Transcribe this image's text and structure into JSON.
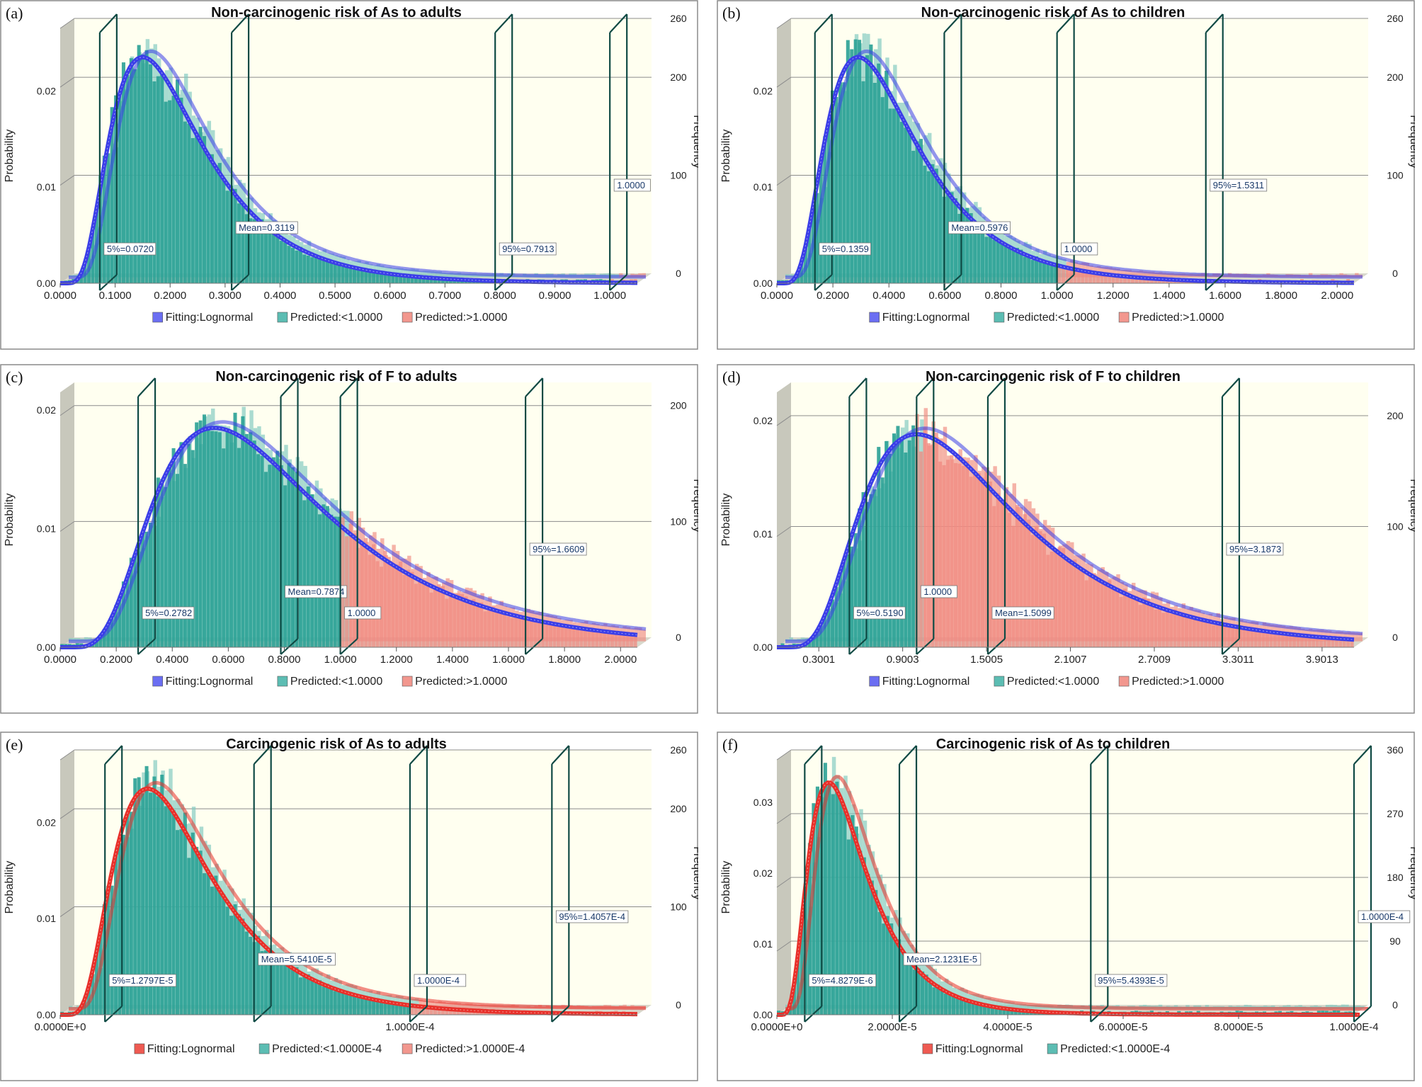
{
  "colors": {
    "plot_bg": "#fffff0",
    "wall": "#c8c8bc",
    "teal": "#2aa195",
    "teal_light": "#7cc8bf",
    "red_bar": "#f08a80",
    "blue_curve": "#3b3ee8",
    "red_curve": "#e8302a",
    "marker": "#0f4a44",
    "grid": "#8c8c8c",
    "panel_border": "#8a8a8a"
  },
  "chart_data": [
    {
      "panel": "(a)",
      "type": "bar",
      "title": "Non-carcinogenic risk of As to adults",
      "xlabel": "",
      "ylabel": "Probability",
      "y2label": "Frequency",
      "distribution": "lognormal",
      "peak_x": 0.15,
      "peak_prob": 0.0235,
      "xmin": 0.0,
      "xmax": 1.05,
      "threshold": 1.0,
      "xlim": [
        0.0,
        1.05
      ],
      "ylim": [
        0.0,
        0.0265
      ],
      "y2lim": [
        0,
        260
      ],
      "x_ticks": [
        "0.0000",
        "0.1000",
        "0.2000",
        "0.3000",
        "0.4000",
        "0.5000",
        "0.6000",
        "0.7000",
        "0.8000",
        "0.9000",
        "1.0000"
      ],
      "x_tick_values": [
        0.0,
        0.1,
        0.2,
        0.3,
        0.4,
        0.5,
        0.6,
        0.7,
        0.8,
        0.9,
        1.0
      ],
      "y_ticks": [
        "0.00",
        "0.01",
        "0.02"
      ],
      "y_tick_values": [
        0.0,
        0.01,
        0.02
      ],
      "y2_ticks": [
        "0",
        "100",
        "200",
        "260"
      ],
      "y2_tick_values": [
        0,
        100,
        200,
        260
      ],
      "markers": [
        {
          "x": 0.072,
          "label": "5%=0.0720"
        },
        {
          "x": 0.3119,
          "label": "Mean=0.3119"
        },
        {
          "x": 0.7913,
          "label": "95%=0.7913"
        },
        {
          "x": 1.0,
          "label": "1.0000"
        }
      ],
      "legend": [
        {
          "label": "Fitting:Lognormal",
          "color": "#6b6ef2"
        },
        {
          "label": "Predicted:<1.0000",
          "color": "#5cbdb3"
        },
        {
          "label": "Predicted:>1.0000",
          "color": "#f2978e"
        }
      ],
      "curve_color": "blue"
    },
    {
      "panel": "(b)",
      "type": "bar",
      "title": "Non-carcinogenic risk of As to children",
      "xlabel": "",
      "ylabel": "Probability",
      "y2label": "Frequency",
      "distribution": "lognormal",
      "peak_x": 0.29,
      "peak_prob": 0.0235,
      "xmin": 0.0,
      "xmax": 2.06,
      "threshold": 1.0,
      "xlim": [
        0.0,
        2.06
      ],
      "ylim": [
        0.0,
        0.0265
      ],
      "y2lim": [
        0,
        260
      ],
      "x_ticks": [
        "0.0000",
        "0.2000",
        "0.4000",
        "0.6000",
        "0.8000",
        "1.0000",
        "1.2000",
        "1.4000",
        "1.6000",
        "1.8000",
        "2.0000"
      ],
      "x_tick_values": [
        0.0,
        0.2,
        0.4,
        0.6,
        0.8,
        1.0,
        1.2,
        1.4,
        1.6,
        1.8,
        2.0
      ],
      "y_ticks": [
        "0.00",
        "0.01",
        "0.02"
      ],
      "y_tick_values": [
        0.0,
        0.01,
        0.02
      ],
      "y2_ticks": [
        "0",
        "100",
        "200",
        "260"
      ],
      "y2_tick_values": [
        0,
        100,
        200,
        260
      ],
      "markers": [
        {
          "x": 0.1359,
          "label": "5%=0.1359"
        },
        {
          "x": 0.5976,
          "label": "Mean=0.5976"
        },
        {
          "x": 1.0,
          "label": "1.0000"
        },
        {
          "x": 1.5311,
          "label": "95%=1.5311"
        }
      ],
      "legend": [
        {
          "label": "Fitting:Lognormal",
          "color": "#6b6ef2"
        },
        {
          "label": "Predicted:<1.0000",
          "color": "#5cbdb3"
        },
        {
          "label": "Predicted:>1.0000",
          "color": "#f2978e"
        }
      ],
      "curve_color": "blue"
    },
    {
      "panel": "(c)",
      "type": "bar",
      "title": "Non-carcinogenic risk of F to adults",
      "xlabel": "",
      "ylabel": "Probability",
      "y2label": "Frequency",
      "distribution": "lognormal",
      "peak_x": 0.55,
      "peak_prob": 0.0185,
      "xmin": 0.0,
      "xmax": 2.06,
      "threshold": 1.0,
      "xlim": [
        0.0,
        2.06
      ],
      "ylim": [
        0.0,
        0.0215
      ],
      "y2lim": [
        0,
        220
      ],
      "x_ticks": [
        "0.0000",
        "0.2000",
        "0.4000",
        "0.6000",
        "0.8000",
        "1.0000",
        "1.2000",
        "1.4000",
        "1.6000",
        "1.8000",
        "2.0000"
      ],
      "x_tick_values": [
        0.0,
        0.2,
        0.4,
        0.6,
        0.8,
        1.0,
        1.2,
        1.4,
        1.6,
        1.8,
        2.0
      ],
      "y_ticks": [
        "0.00",
        "0.01",
        "0.02"
      ],
      "y_tick_values": [
        0.0,
        0.01,
        0.02
      ],
      "y2_ticks": [
        "0",
        "100",
        "200"
      ],
      "y2_tick_values": [
        0,
        100,
        200
      ],
      "markers": [
        {
          "x": 0.2782,
          "label": "5%=0.2782"
        },
        {
          "x": 0.7874,
          "label": "Mean=0.7874"
        },
        {
          "x": 1.0,
          "label": "1.0000"
        },
        {
          "x": 1.6609,
          "label": "95%=1.6609"
        }
      ],
      "legend": [
        {
          "label": "Fitting:Lognormal",
          "color": "#6b6ef2"
        },
        {
          "label": "Predicted:<1.0000",
          "color": "#5cbdb3"
        },
        {
          "label": "Predicted:>1.0000",
          "color": "#f2978e"
        }
      ],
      "curve_color": "blue"
    },
    {
      "panel": "(d)",
      "type": "bar",
      "title": "Non-carcinogenic risk of F to children",
      "xlabel": "",
      "ylabel": "Probability",
      "y2label": "Frequency",
      "distribution": "lognormal",
      "peak_x": 1.0,
      "peak_prob": 0.0188,
      "xmin": 0.0,
      "xmax": 4.13,
      "threshold": 1.0,
      "xlim": [
        0.0,
        4.13
      ],
      "ylim": [
        0.0,
        0.0225
      ],
      "y2lim": [
        0,
        230
      ],
      "x_ticks": [
        "0.3001",
        "0.9003",
        "1.5005",
        "2.1007",
        "2.7009",
        "3.3011",
        "3.9013"
      ],
      "x_tick_values": [
        0.3001,
        0.9003,
        1.5005,
        2.1007,
        2.7009,
        3.3011,
        3.9013
      ],
      "y_ticks": [
        "0.00",
        "0.01",
        "0.02"
      ],
      "y_tick_values": [
        0.0,
        0.01,
        0.02
      ],
      "y2_ticks": [
        "0",
        "100",
        "200"
      ],
      "y2_tick_values": [
        0,
        100,
        200
      ],
      "markers": [
        {
          "x": 0.519,
          "label": "5%=0.5190"
        },
        {
          "x": 1.0,
          "label": "1.0000"
        },
        {
          "x": 1.5099,
          "label": "Mean=1.5099"
        },
        {
          "x": 3.1873,
          "label": "95%=3.1873"
        }
      ],
      "legend": [
        {
          "label": "Fitting:Lognormal",
          "color": "#6b6ef2"
        },
        {
          "label": "Predicted:<1.0000",
          "color": "#5cbdb3"
        },
        {
          "label": "Predicted:>1.0000",
          "color": "#f2978e"
        }
      ],
      "curve_color": "blue"
    },
    {
      "panel": "(e)",
      "type": "bar",
      "title": "Carcinogenic risk of As to adults",
      "xlabel": "",
      "ylabel": "Probability",
      "y2label": "Frequency",
      "distribution": "lognormal",
      "peak_x": 2.5e-05,
      "peak_prob": 0.0235,
      "xmin": 0.0,
      "xmax": 0.000165,
      "threshold": 0.0001,
      "xlim": [
        0.0,
        0.000165
      ],
      "ylim": [
        0.0,
        0.0265
      ],
      "y2lim": [
        0,
        260
      ],
      "x_ticks": [
        "0.0000E+0",
        "1.0000E-4"
      ],
      "x_tick_values": [
        0.0,
        0.0001
      ],
      "y_ticks": [
        "0.00",
        "0.01",
        "0.02"
      ],
      "y_tick_values": [
        0.0,
        0.01,
        0.02
      ],
      "y2_ticks": [
        "0",
        "100",
        "200",
        "260"
      ],
      "y2_tick_values": [
        0,
        100,
        200,
        260
      ],
      "markers": [
        {
          "x": 1.2797e-05,
          "label": "5%=1.2797E-5"
        },
        {
          "x": 5.541e-05,
          "label": "Mean=5.5410E-5"
        },
        {
          "x": 0.0001,
          "label": "1.0000E-4"
        },
        {
          "x": 0.00014057,
          "label": "95%=1.4057E-4"
        }
      ],
      "legend": [
        {
          "label": "Fitting:Lognormal",
          "color": "#ef5a52"
        },
        {
          "label": "Predicted:<1.0000E-4",
          "color": "#5cbdb3"
        },
        {
          "label": "Predicted:>1.0000E-4",
          "color": "#f2978e"
        }
      ],
      "curve_color": "red"
    },
    {
      "panel": "(f)",
      "type": "bar",
      "title": "Carcinogenic risk of As to children",
      "xlabel": "",
      "ylabel": "Probability",
      "y2label": "Frequency",
      "distribution": "lognormal",
      "peak_x": 9e-06,
      "peak_prob": 0.0328,
      "xmin": 0.0,
      "xmax": 0.000101,
      "threshold": 0.0001,
      "xlim": [
        0.0,
        0.0001
      ],
      "ylim": [
        0.0,
        0.036
      ],
      "y2lim": [
        0,
        360
      ],
      "x_ticks": [
        "0.0000E+0",
        "2.0000E-5",
        "4.0000E-5",
        "6.0000E-5",
        "8.0000E-5",
        "1.0000E-4"
      ],
      "x_tick_values": [
        0.0,
        2e-05,
        4e-05,
        6e-05,
        8e-05,
        0.0001
      ],
      "y_ticks": [
        "0.00",
        "0.01",
        "0.02",
        "0.03"
      ],
      "y_tick_values": [
        0.0,
        0.01,
        0.02,
        0.03
      ],
      "y2_ticks": [
        "0",
        "90",
        "180",
        "270",
        "360"
      ],
      "y2_tick_values": [
        0,
        90,
        180,
        270,
        360
      ],
      "markers": [
        {
          "x": 4.8279e-06,
          "label": "5%=4.8279E-6"
        },
        {
          "x": 2.1231e-05,
          "label": "Mean=2.1231E-5"
        },
        {
          "x": 5.4393e-05,
          "label": "95%=5.4393E-5"
        },
        {
          "x": 0.0001,
          "label": "1.0000E-4"
        }
      ],
      "legend": [
        {
          "label": "Fitting:Lognormal",
          "color": "#ef5a52"
        },
        {
          "label": "Predicted:<1.0000E-4",
          "color": "#5cbdb3"
        }
      ],
      "curve_color": "red"
    }
  ]
}
